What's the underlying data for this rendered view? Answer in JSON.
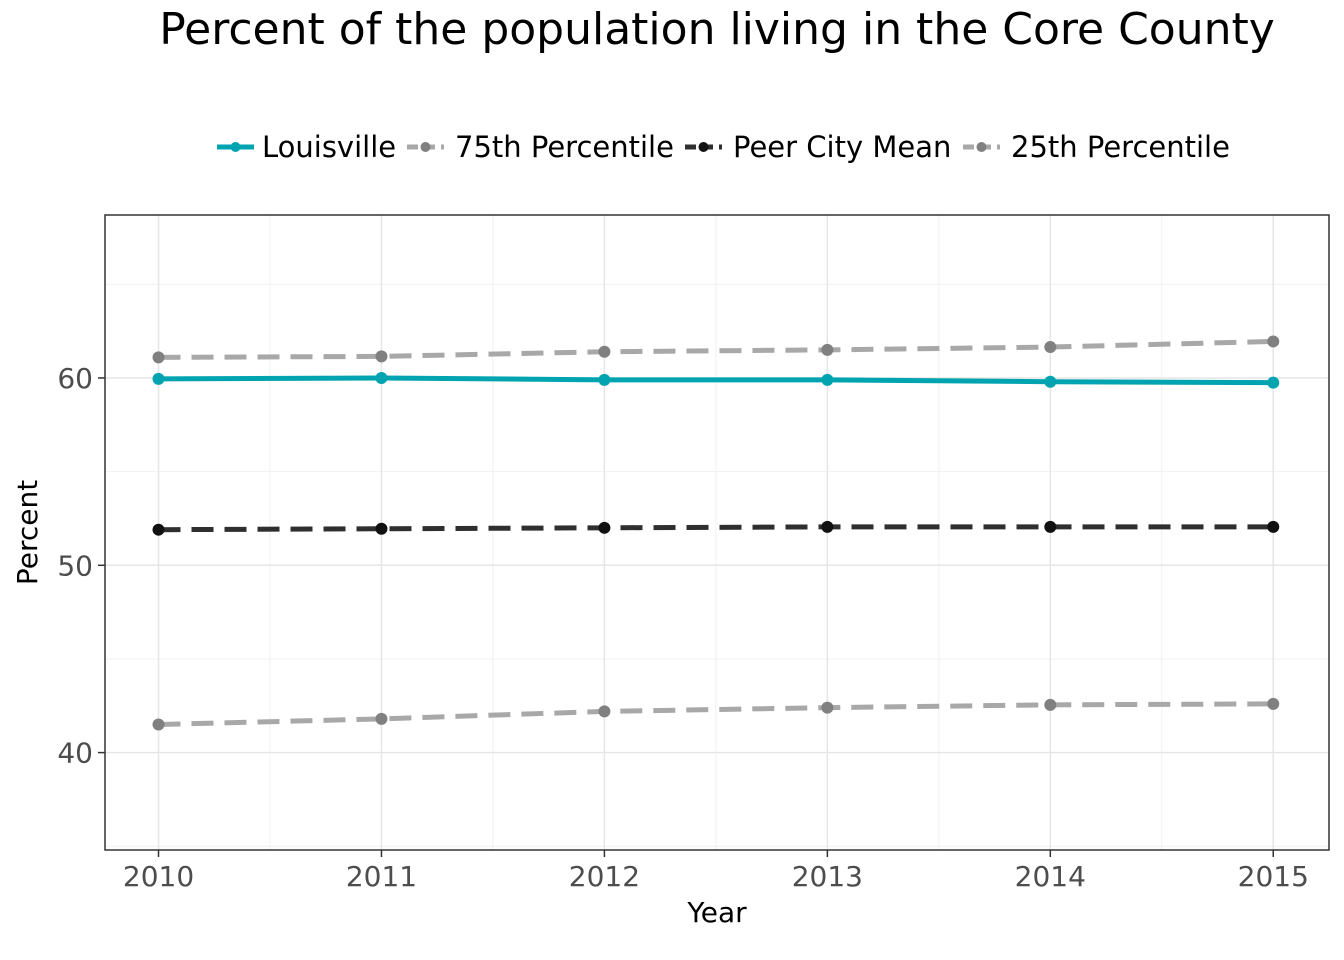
{
  "chart_data": {
    "type": "line",
    "title": "Percent of the population living in the Core County",
    "xlabel": "Year",
    "ylabel": "Percent",
    "x": [
      2010,
      2011,
      2012,
      2013,
      2014,
      2015
    ],
    "xlim": [
      2009.76,
      2015.25
    ],
    "ylim": [
      34.8,
      68.7
    ],
    "yticks": [
      40,
      50,
      60
    ],
    "grid": true,
    "legend_position": "top",
    "series": [
      {
        "name": "Louisville",
        "values": [
          59.95,
          60.0,
          59.9,
          59.9,
          59.8,
          59.75
        ],
        "color": "#00a3b0",
        "style": "solid"
      },
      {
        "name": "75th Percentile",
        "values": [
          61.1,
          61.15,
          61.4,
          61.5,
          61.65,
          61.95
        ],
        "color": "#a8a8a8",
        "style": "dashed"
      },
      {
        "name": "Peer City Mean",
        "values": [
          51.9,
          51.95,
          52.0,
          52.05,
          52.05,
          52.05
        ],
        "color": "#2f2f2f",
        "style": "dashed"
      },
      {
        "name": "25th Percentile",
        "values": [
          41.5,
          41.8,
          42.2,
          42.4,
          42.55,
          42.6
        ],
        "color": "#a8a8a8",
        "style": "dashed"
      }
    ]
  }
}
